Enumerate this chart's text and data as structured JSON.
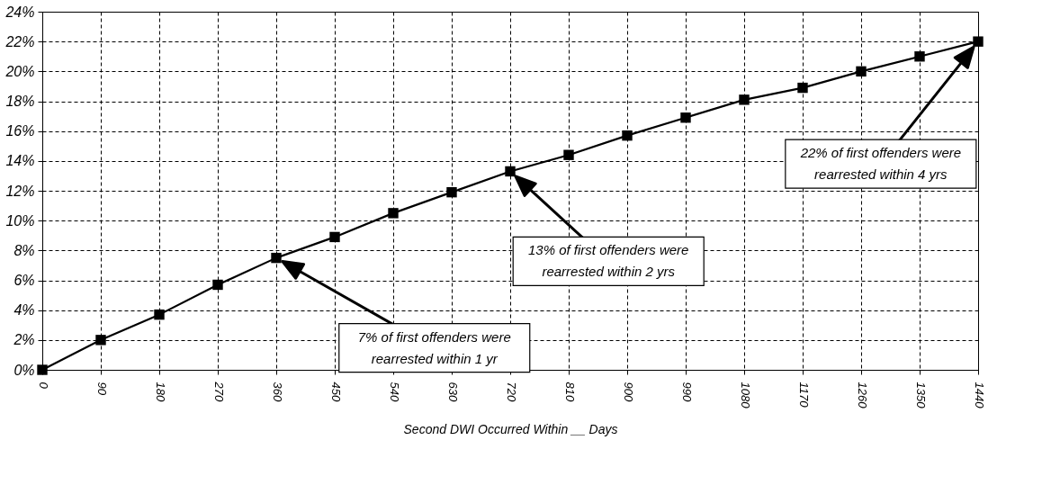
{
  "chart_data": {
    "type": "line",
    "xlabel": "Second DWI Occurred Within __ Days",
    "x": [
      0,
      90,
      180,
      270,
      360,
      450,
      540,
      630,
      720,
      810,
      900,
      990,
      1080,
      1170,
      1260,
      1350,
      1440
    ],
    "series": [
      {
        "color": "#000000",
        "values": [
          0,
          2.0,
          3.7,
          5.7,
          7.5,
          8.9,
          10.5,
          11.9,
          13.3,
          14.4,
          15.7,
          16.9,
          18.1,
          18.9,
          20.0,
          21.0,
          22.0
        ]
      }
    ],
    "xlim": [
      0,
      1440
    ],
    "xticks": [
      0,
      90,
      180,
      270,
      360,
      450,
      540,
      630,
      720,
      810,
      900,
      990,
      1080,
      1170,
      1260,
      1350,
      1440
    ],
    "ylim": [
      0,
      24
    ],
    "yticks": [
      {
        "value": 0,
        "label": "0%"
      },
      {
        "value": 2,
        "label": "2%"
      },
      {
        "value": 4,
        "label": "4%"
      },
      {
        "value": 6,
        "label": "6%"
      },
      {
        "value": 8,
        "label": "8%"
      },
      {
        "value": 10,
        "label": "10%"
      },
      {
        "value": 12,
        "label": "12%"
      },
      {
        "value": 14,
        "label": "14%"
      },
      {
        "value": 16,
        "label": "16%"
      },
      {
        "value": 18,
        "label": "18%"
      },
      {
        "value": 20,
        "label": "20%"
      },
      {
        "value": 22,
        "label": "22%"
      },
      {
        "value": 24,
        "label": "24%"
      }
    ],
    "grid": true,
    "marker": "square",
    "line_style": "solid",
    "annotations": [
      "7% of first offenders were\nrearrested within 1 yr",
      "13% of first offenders were\nrearrested within 2 yrs",
      "22% of first offenders were\nrearrested within 4 yrs"
    ]
  }
}
